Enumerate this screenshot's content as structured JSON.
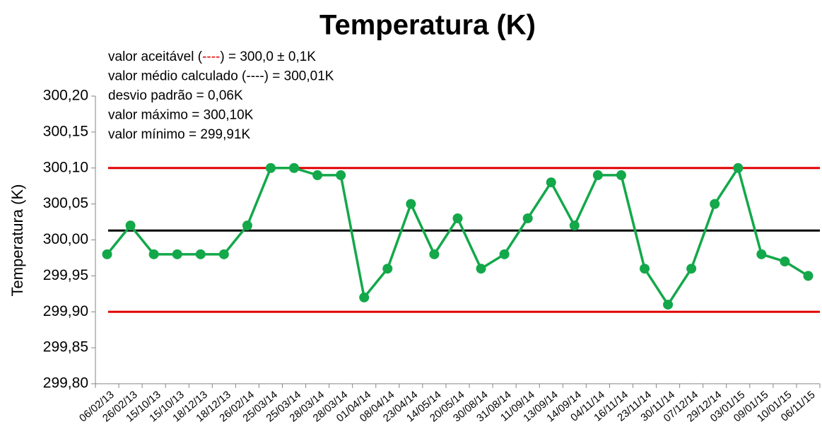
{
  "chart_data": {
    "type": "line",
    "title": "Temperatura (K)",
    "y_label": "Temperatura (K)",
    "categories": [
      "06/02/13",
      "26/02/13",
      "15/10/13",
      "15/10/13",
      "18/12/13",
      "18/12/13",
      "26/02/14",
      "25/03/14",
      "25/03/14",
      "28/03/14",
      "28/03/14",
      "01/04/14",
      "08/04/14",
      "23/04/14",
      "14/05/14",
      "20/05/14",
      "30/08/14",
      "31/08/14",
      "11/09/14",
      "13/09/14",
      "14/09/14",
      "04/11/14",
      "16/11/14",
      "23/11/14",
      "30/11/14",
      "07/12/14",
      "29/12/14",
      "03/01/15",
      "09/01/15",
      "10/01/15",
      "06/11/15"
    ],
    "series": [
      {
        "color": "#13a84a",
        "values": [
          299.98,
          300.02,
          299.98,
          299.98,
          299.98,
          299.98,
          300.02,
          300.1,
          300.1,
          300.09,
          300.09,
          299.92,
          299.96,
          300.05,
          299.98,
          300.03,
          299.96,
          299.98,
          300.03,
          300.08,
          300.02,
          300.09,
          300.09,
          299.96,
          299.91,
          299.96,
          300.05,
          300.1,
          299.98,
          299.97,
          299.95
        ]
      }
    ],
    "reference_lines": [
      {
        "value": 300.1,
        "color": "#e00000"
      },
      {
        "value": 299.9,
        "color": "#e00000"
      },
      {
        "value": 300.013,
        "color": "#000000"
      }
    ],
    "ylim": [
      299.8,
      300.2
    ],
    "yticks": [
      {
        "value": 299.8,
        "label": "299,80"
      },
      {
        "value": 299.85,
        "label": "299,85"
      },
      {
        "value": 299.9,
        "label": "299,90"
      },
      {
        "value": 299.95,
        "label": "299,95"
      },
      {
        "value": 300.0,
        "label": "300,00"
      },
      {
        "value": 300.05,
        "label": "300,05"
      },
      {
        "value": 300.1,
        "label": "300,10"
      },
      {
        "value": 300.15,
        "label": "300,15"
      },
      {
        "value": 300.2,
        "label": "300,20"
      }
    ],
    "annotations": [
      [
        {
          "text": "valor aceitável  (",
          "color": "#000000"
        },
        {
          "text": "----",
          "color": "#e00000"
        },
        {
          "text": ") = 300,0 ± 0,1K",
          "color": "#000000"
        }
      ],
      [
        {
          "text": "valor médio calculado  (----) = 300,01K",
          "color": "#000000"
        }
      ],
      [
        {
          "text": "desvio padrão = 0,06K",
          "color": "#000000"
        }
      ],
      [
        {
          "text": "valor máximo = 300,10K",
          "color": "#000000"
        }
      ],
      [
        {
          "text": "valor mínimo =  299,91K",
          "color": "#000000"
        }
      ]
    ]
  }
}
